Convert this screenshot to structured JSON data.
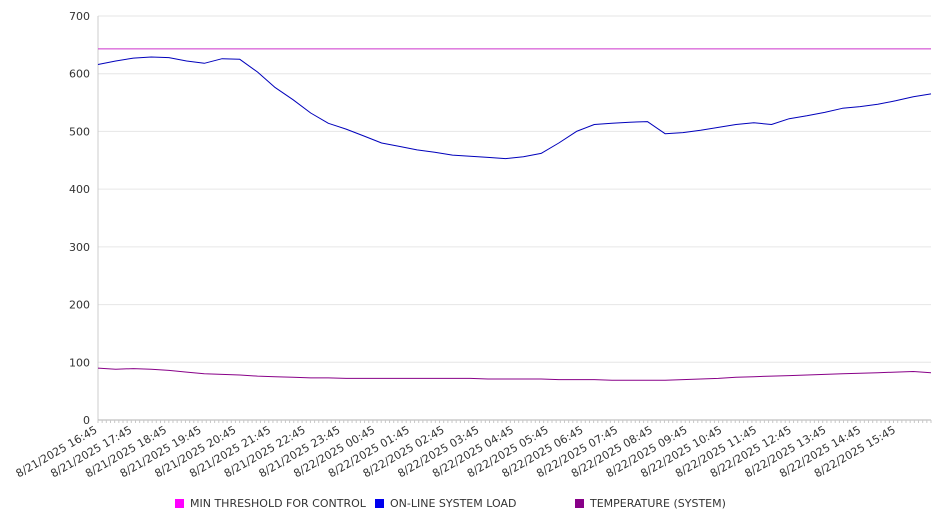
{
  "chart_data": {
    "type": "line",
    "title": "",
    "xlabel": "",
    "ylabel": "",
    "ylim": [
      0,
      700
    ],
    "y_ticks": [
      0,
      100,
      200,
      300,
      400,
      500,
      600,
      700
    ],
    "grid": true,
    "legend_position": "bottom",
    "x_tick_labels": [
      "8/21/2025 16:45",
      "8/21/2025 17:45",
      "8/21/2025 18:45",
      "8/21/2025 19:45",
      "8/21/2025 20:45",
      "8/21/2025 21:45",
      "8/21/2025 22:45",
      "8/21/2025 23:45",
      "8/22/2025 00:45",
      "8/22/2025 01:45",
      "8/22/2025 02:45",
      "8/22/2025 03:45",
      "8/22/2025 04:45",
      "8/22/2025 05:45",
      "8/22/2025 06:45",
      "8/22/2025 07:45",
      "8/22/2025 08:45",
      "8/22/2025 09:45",
      "8/22/2025 10:45",
      "8/22/2025 11:45",
      "8/22/2025 12:45",
      "8/22/2025 13:45",
      "8/22/2025 14:45",
      "8/22/2025 15:45"
    ],
    "x": [
      "8/21/2025 16:45",
      "8/21/2025 17:15",
      "8/21/2025 17:45",
      "8/21/2025 18:15",
      "8/21/2025 18:45",
      "8/21/2025 19:15",
      "8/21/2025 19:45",
      "8/21/2025 20:15",
      "8/21/2025 20:45",
      "8/21/2025 21:15",
      "8/21/2025 21:45",
      "8/21/2025 22:15",
      "8/21/2025 22:45",
      "8/21/2025 23:15",
      "8/21/2025 23:45",
      "8/22/2025 00:15",
      "8/22/2025 00:45",
      "8/22/2025 01:15",
      "8/22/2025 01:45",
      "8/22/2025 02:15",
      "8/22/2025 02:45",
      "8/22/2025 03:15",
      "8/22/2025 03:45",
      "8/22/2025 04:15",
      "8/22/2025 04:45",
      "8/22/2025 05:15",
      "8/22/2025 05:45",
      "8/22/2025 06:15",
      "8/22/2025 06:45",
      "8/22/2025 07:15",
      "8/22/2025 07:45",
      "8/22/2025 08:15",
      "8/22/2025 08:45",
      "8/22/2025 09:15",
      "8/22/2025 09:45",
      "8/22/2025 10:15",
      "8/22/2025 10:45",
      "8/22/2025 11:15",
      "8/22/2025 11:45",
      "8/22/2025 12:15",
      "8/22/2025 12:45",
      "8/22/2025 13:15",
      "8/22/2025 13:45",
      "8/22/2025 14:15",
      "8/22/2025 14:45",
      "8/22/2025 15:15",
      "8/22/2025 15:45",
      "8/22/2025 16:15"
    ],
    "series": [
      {
        "name": "MIN THRESHOLD FOR CONTROL",
        "color": "#cc33cc",
        "legend_color": "#ff00ff",
        "values": [
          643,
          643,
          643,
          643,
          643,
          643,
          643,
          643,
          643,
          643,
          643,
          643,
          643,
          643,
          643,
          643,
          643,
          643,
          643,
          643,
          643,
          643,
          643,
          643,
          643,
          643,
          643,
          643,
          643,
          643,
          643,
          643,
          643,
          643,
          643,
          643,
          643,
          643,
          643,
          643,
          643,
          643,
          643,
          643,
          643,
          643,
          643,
          643
        ]
      },
      {
        "name": "ON-LINE SYSTEM LOAD",
        "color": "#0000bb",
        "legend_color": "#0000ee",
        "values": [
          616,
          622,
          627,
          629,
          628,
          622,
          618,
          626,
          625,
          603,
          576,
          555,
          532,
          514,
          504,
          492,
          480,
          474,
          468,
          464,
          459,
          457,
          455,
          453,
          456,
          462,
          480,
          500,
          512,
          514,
          516,
          517,
          496,
          498,
          502,
          507,
          512,
          515,
          512,
          522,
          527,
          533,
          540,
          543,
          547,
          553,
          560,
          565
        ]
      },
      {
        "name": "TEMPERATURE (SYSTEM)",
        "color": "#880088",
        "legend_color": "#880088",
        "values": [
          90,
          88,
          89,
          88,
          86,
          83,
          80,
          79,
          78,
          76,
          75,
          74,
          73,
          73,
          72,
          72,
          72,
          72,
          72,
          72,
          72,
          72,
          71,
          71,
          71,
          71,
          70,
          70,
          70,
          69,
          69,
          69,
          69,
          70,
          71,
          72,
          74,
          75,
          76,
          77,
          78,
          79,
          80,
          81,
          82,
          83,
          84,
          82
        ]
      }
    ]
  }
}
